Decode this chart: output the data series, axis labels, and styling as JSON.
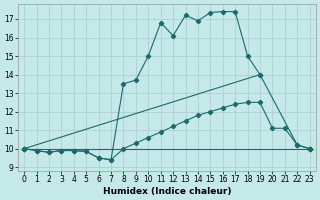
{
  "xlabel": "Humidex (Indice chaleur)",
  "background_color": "#c5e8e8",
  "grid_color": "#aacccc",
  "line_color": "#1a6b6b",
  "xlim": [
    -0.5,
    23.5
  ],
  "ylim": [
    8.8,
    17.8
  ],
  "yticks": [
    9,
    10,
    11,
    12,
    13,
    14,
    15,
    16,
    17
  ],
  "xticks": [
    0,
    1,
    2,
    3,
    4,
    5,
    6,
    7,
    8,
    9,
    10,
    11,
    12,
    13,
    14,
    15,
    16,
    17,
    18,
    19,
    20,
    21,
    22,
    23
  ],
  "series": [
    {
      "x": [
        0,
        1,
        2,
        3,
        4,
        5,
        6,
        7,
        8,
        9,
        10,
        11,
        12,
        13,
        14,
        15,
        16,
        17,
        18,
        19,
        22,
        23
      ],
      "y": [
        10,
        9.9,
        9.8,
        9.9,
        9.9,
        9.85,
        9.5,
        9.4,
        13.5,
        13.7,
        15.0,
        16.8,
        16.1,
        17.2,
        16.9,
        17.35,
        17.4,
        17.4,
        15.0,
        14.0,
        10.2,
        10.0
      ]
    },
    {
      "x": [
        0,
        23
      ],
      "y": [
        10.0,
        10.0
      ]
    },
    {
      "x": [
        0,
        19
      ],
      "y": [
        10.0,
        14.0
      ]
    },
    {
      "x": [
        0,
        1,
        2,
        3,
        4,
        5,
        6,
        7,
        8,
        9,
        10,
        11,
        12,
        13,
        14,
        15,
        16,
        17,
        18,
        19,
        20,
        21,
        22,
        23
      ],
      "y": [
        10,
        9.9,
        9.8,
        9.9,
        9.9,
        9.85,
        9.5,
        9.4,
        10.0,
        10.3,
        10.6,
        10.9,
        11.2,
        11.5,
        11.8,
        12.0,
        12.2,
        12.4,
        12.5,
        12.5,
        11.1,
        11.1,
        10.2,
        10.0
      ]
    }
  ]
}
